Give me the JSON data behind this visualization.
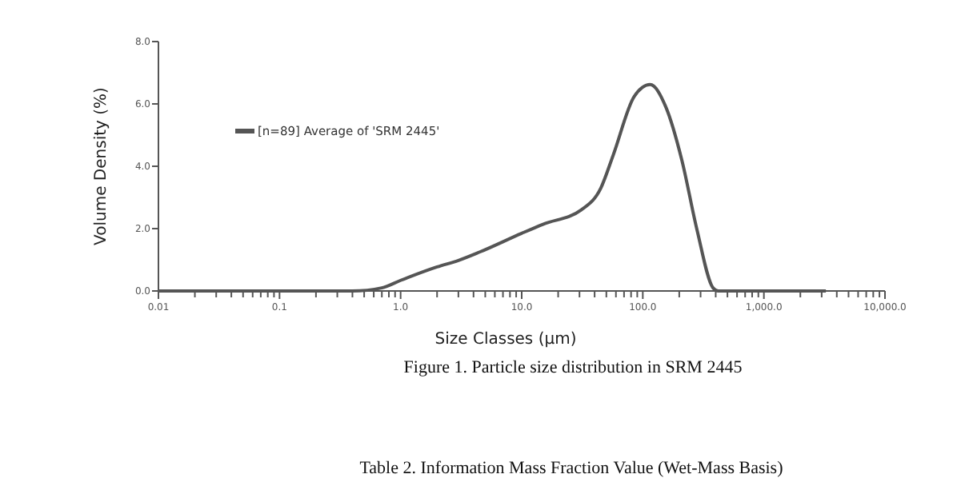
{
  "chart_data": {
    "type": "line",
    "xlabel": "Size Classes (µm)",
    "ylabel": "Volume Density (%)",
    "log": "x",
    "grid": false,
    "legend": "top left",
    "marker": "none",
    "line_style": "solid",
    "xlim": [
      0.01,
      10000
    ],
    "ylim": [
      0,
      8
    ],
    "xticks": [
      {
        "value": 0.01,
        "label": "0.01"
      },
      {
        "value": 0.02,
        "label": null
      },
      {
        "value": 0.03,
        "label": null
      },
      {
        "value": 0.04,
        "label": null
      },
      {
        "value": 0.05,
        "label": null
      },
      {
        "value": 0.06,
        "label": null
      },
      {
        "value": 0.07,
        "label": null
      },
      {
        "value": 0.08,
        "label": null
      },
      {
        "value": 0.09,
        "label": null
      },
      {
        "value": 0.1,
        "label": "0.1"
      },
      {
        "value": 0.2,
        "label": null
      },
      {
        "value": 0.3,
        "label": null
      },
      {
        "value": 0.4,
        "label": null
      },
      {
        "value": 0.5,
        "label": null
      },
      {
        "value": 0.6,
        "label": null
      },
      {
        "value": 0.7,
        "label": null
      },
      {
        "value": 0.8,
        "label": null
      },
      {
        "value": 0.9,
        "label": null
      },
      {
        "value": 1,
        "label": "1.0"
      },
      {
        "value": 2,
        "label": null
      },
      {
        "value": 3,
        "label": null
      },
      {
        "value": 4,
        "label": null
      },
      {
        "value": 5,
        "label": null
      },
      {
        "value": 6,
        "label": null
      },
      {
        "value": 7,
        "label": null
      },
      {
        "value": 8,
        "label": null
      },
      {
        "value": 9,
        "label": null
      },
      {
        "value": 10,
        "label": "10.0"
      },
      {
        "value": 20,
        "label": null
      },
      {
        "value": 30,
        "label": null
      },
      {
        "value": 40,
        "label": null
      },
      {
        "value": 50,
        "label": null
      },
      {
        "value": 60,
        "label": null
      },
      {
        "value": 70,
        "label": null
      },
      {
        "value": 80,
        "label": null
      },
      {
        "value": 90,
        "label": null
      },
      {
        "value": 100,
        "label": "100.0"
      },
      {
        "value": 200,
        "label": null
      },
      {
        "value": 300,
        "label": null
      },
      {
        "value": 400,
        "label": null
      },
      {
        "value": 500,
        "label": null
      },
      {
        "value": 600,
        "label": null
      },
      {
        "value": 700,
        "label": null
      },
      {
        "value": 800,
        "label": null
      },
      {
        "value": 900,
        "label": null
      },
      {
        "value": 1000,
        "label": "1,000.0"
      },
      {
        "value": 2000,
        "label": null
      },
      {
        "value": 3000,
        "label": null
      },
      {
        "value": 4000,
        "label": null
      },
      {
        "value": 5000,
        "label": null
      },
      {
        "value": 6000,
        "label": null
      },
      {
        "value": 7000,
        "label": null
      },
      {
        "value": 8000,
        "label": null
      },
      {
        "value": 9000,
        "label": null
      },
      {
        "value": 10000,
        "label": "10,000.0"
      }
    ],
    "yticks": [
      {
        "value": 0,
        "label": "0.0"
      },
      {
        "value": 2,
        "label": "2.0"
      },
      {
        "value": 4,
        "label": "4.0"
      },
      {
        "value": 6,
        "label": "6.0"
      },
      {
        "value": 8,
        "label": "8.0"
      }
    ],
    "x": [
      0.01,
      0.1,
      0.4,
      0.7,
      1,
      2,
      3,
      4.5,
      10,
      15,
      31,
      45,
      57,
      85,
      115,
      155,
      210,
      280,
      380,
      420,
      1000,
      3250
    ],
    "series": [
      {
        "name": "[n=89] Average of 'SRM 2445'",
        "color": "#555555",
        "values": [
          0,
          0,
          0,
          0.1,
          0.34,
          0.77,
          0.98,
          1.25,
          1.85,
          2.14,
          2.6,
          3.3,
          4.36,
          6.24,
          6.62,
          5.9,
          4.2,
          1.97,
          0.1,
          0,
          0,
          0
        ]
      }
    ],
    "annotations": [
      "Figure 1.  Particle size distribution in SRM 2445",
      "Table 2.  Information Mass Fraction Value (Wet-Mass Basis)"
    ]
  }
}
